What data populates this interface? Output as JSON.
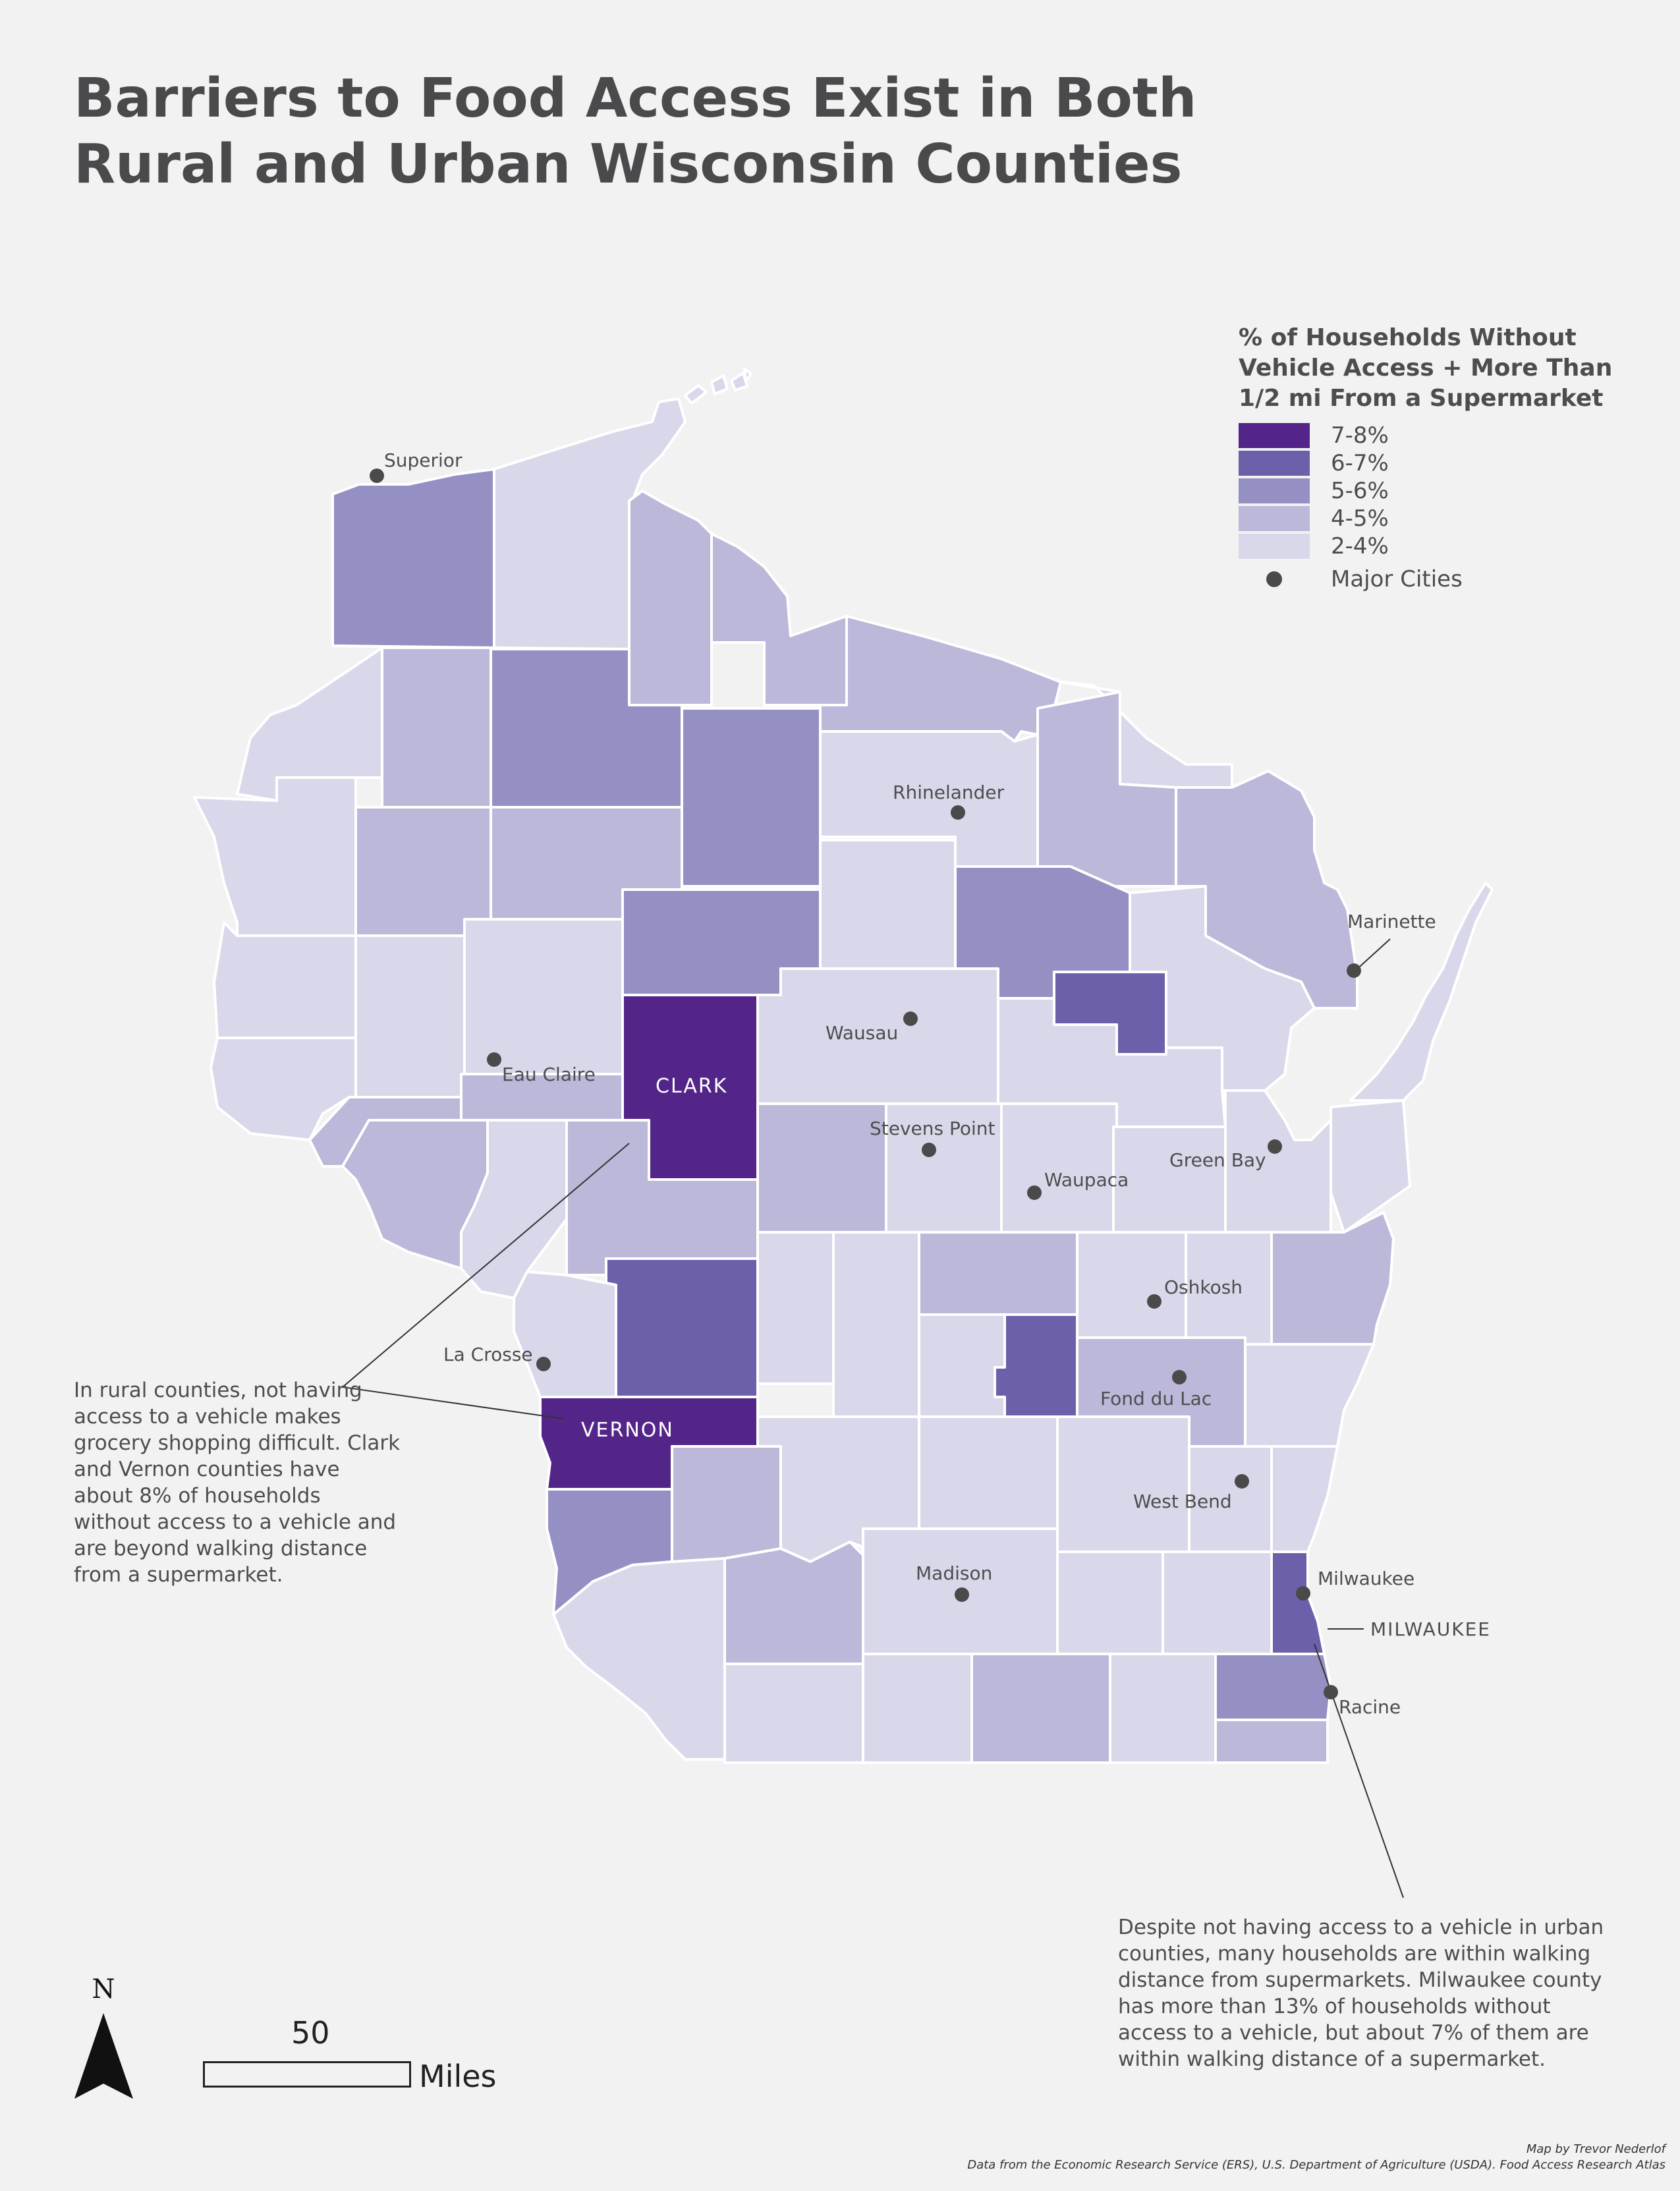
{
  "title": {
    "line1": "Barriers to Food Access Exist in Both",
    "line2": "Rural and Urban Wisconsin Counties"
  },
  "legend": {
    "title_line1": "% of Households Without",
    "title_line2": "Vehicle Access + More Than",
    "title_line3": "1/2 mi From a Supermarket",
    "classes": [
      {
        "label": "7-8%",
        "color": "#532589"
      },
      {
        "label": "6-7%",
        "color": "#6d60ab"
      },
      {
        "label": "5-6%",
        "color": "#9590c3"
      },
      {
        "label": "4-5%",
        "color": "#bbb8d9"
      },
      {
        "label": "2-4%",
        "color": "#d9d8ea"
      }
    ],
    "cities_label": "Major Cities"
  },
  "cities": [
    {
      "name": "Superior"
    },
    {
      "name": "Rhinelander"
    },
    {
      "name": "Marinette"
    },
    {
      "name": "Wausau"
    },
    {
      "name": "Eau Claire"
    },
    {
      "name": "Stevens Point"
    },
    {
      "name": "Waupaca"
    },
    {
      "name": "Green Bay"
    },
    {
      "name": "Oshkosh"
    },
    {
      "name": "La Crosse"
    },
    {
      "name": "Fond du Lac"
    },
    {
      "name": "West Bend"
    },
    {
      "name": "Madison"
    },
    {
      "name": "Milwaukee"
    },
    {
      "name": "Racine"
    }
  ],
  "county_labels": {
    "clark": "CLARK",
    "vernon": "VERNON",
    "milwaukee": "MILWAUKEE"
  },
  "annotations": {
    "rural": "In rural counties, not having access to a vehicle makes grocery shopping difficult. Clark and Vernon counties have about 8% of households without access to a vehicle and are beyond walking distance from a supermarket.",
    "urban": "Despite not having access to a vehicle in urban counties, many households are within walking distance from supermarkets. Milwaukee county has more than 13% of households without access to a vehicle, but about 7% of them are within walking distance of a supermarket."
  },
  "north_label": "N",
  "scale": {
    "value": "50",
    "unit": "Miles"
  },
  "credits": {
    "line1": "Map by Trevor Nederlof",
    "line2": "Data from the Economic Research Service (ERS), U.S. Department of Agriculture (USDA). Food Access Research Atlas"
  }
}
